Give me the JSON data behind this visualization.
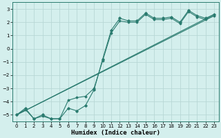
{
  "xlabel": "Humidex (Indice chaleur)",
  "bg_color": "#d4efed",
  "grid_color": "#b8d8d6",
  "line_color": "#2a7b6f",
  "xlim": [
    -0.5,
    23.5
  ],
  "ylim": [
    -5.5,
    3.5
  ],
  "yticks": [
    -5,
    -4,
    -3,
    -2,
    -1,
    0,
    1,
    2,
    3
  ],
  "xticks": [
    0,
    1,
    2,
    3,
    4,
    5,
    6,
    7,
    8,
    9,
    10,
    11,
    12,
    13,
    14,
    15,
    16,
    17,
    18,
    19,
    20,
    21,
    22,
    23
  ],
  "curve1_x": [
    0,
    1,
    2,
    3,
    4,
    5,
    6,
    7,
    8,
    9,
    10,
    11,
    12,
    13,
    14,
    15,
    16,
    17,
    18,
    19,
    20,
    21,
    22,
    23
  ],
  "curve1_y": [
    -5.0,
    -4.5,
    -5.3,
    -5.0,
    -5.3,
    -5.3,
    -4.5,
    -4.7,
    -4.3,
    -3.1,
    -0.8,
    1.4,
    2.3,
    2.1,
    2.1,
    2.7,
    2.3,
    2.3,
    2.4,
    2.0,
    2.9,
    2.5,
    2.3,
    2.6
  ],
  "curve2_x": [
    0,
    1,
    2,
    3,
    4,
    5,
    6,
    7,
    8,
    9,
    10,
    11,
    12,
    13,
    14,
    15,
    16,
    17,
    18,
    19,
    20,
    21,
    22,
    23
  ],
  "curve2_y": [
    -5.0,
    -4.6,
    -5.3,
    -5.1,
    -5.3,
    -5.3,
    -3.9,
    -3.7,
    -3.6,
    -3.0,
    -0.9,
    1.2,
    2.1,
    2.0,
    2.0,
    2.6,
    2.2,
    2.2,
    2.3,
    1.9,
    2.8,
    2.4,
    2.2,
    2.5
  ],
  "line1_x": [
    0,
    23
  ],
  "line1_y": [
    -5.0,
    2.6
  ],
  "line2_x": [
    0,
    23
  ],
  "line2_y": [
    -5.0,
    2.5
  ]
}
